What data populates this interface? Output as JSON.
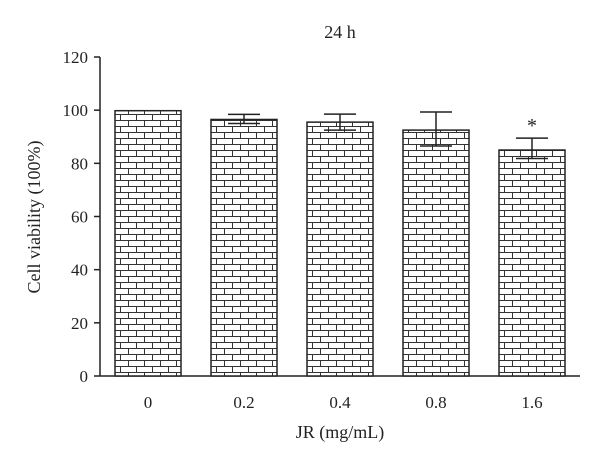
{
  "chart_data": {
    "type": "bar",
    "title": "24 h",
    "xlabel": "JR (mg/mL)",
    "ylabel": "Cell viability (100%)",
    "categories": [
      "0",
      "0.2",
      "0.4",
      "0.8",
      "1.6"
    ],
    "values": [
      99.8,
      96.5,
      95.5,
      92.5,
      85.0
    ],
    "error_upper": [
      99.8,
      98.4,
      98.5,
      99.3,
      89.5
    ],
    "error_lower": [
      99.8,
      95.0,
      92.5,
      86.5,
      81.8
    ],
    "annotations": [
      "",
      "",
      "",
      "",
      "*"
    ],
    "ylim": [
      0,
      120
    ],
    "yticks": [
      "0",
      "20",
      "40",
      "60",
      "80",
      "100",
      "120"
    ],
    "bar_pattern": "brick",
    "grid": false,
    "legend": false
  }
}
